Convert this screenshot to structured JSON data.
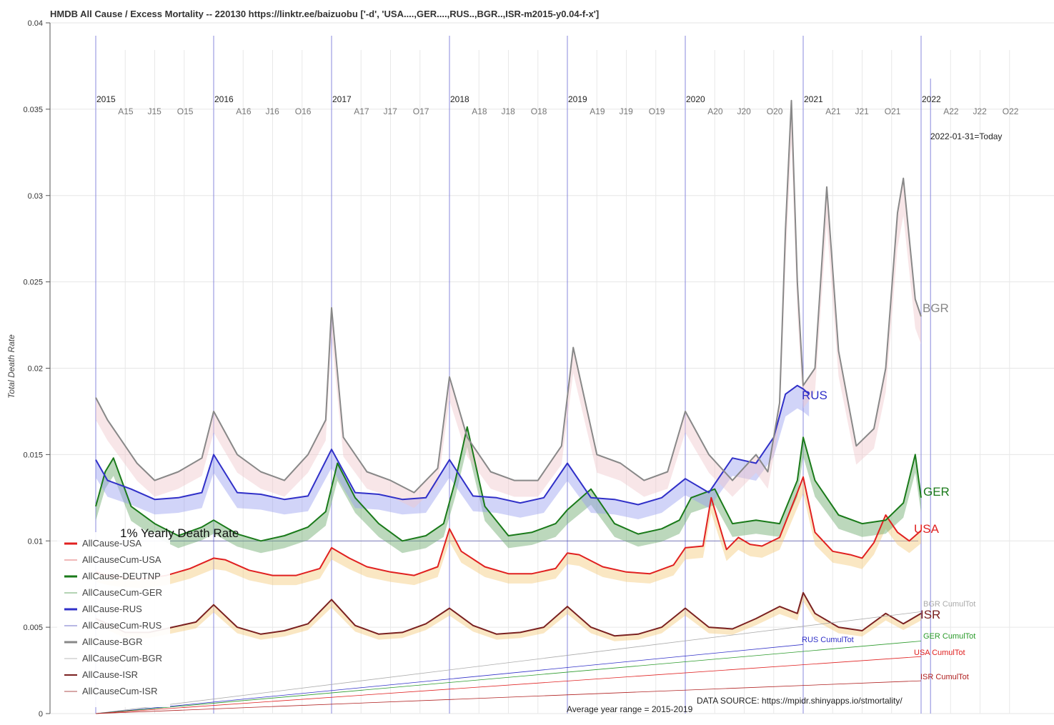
{
  "title": "HMDB All Cause / Excess Mortality -- 220130  https://linktr.ee/baizuobu  ['-d', 'USA....,GER....,RUS..,BGR..,ISR-m2015-y0.04-f-x']",
  "today_label": "2022-01-31=Today",
  "data_source": "DATA SOURCE: https://mpidr.shinyapps.io/stmortality/",
  "avg_range": "Average year range = 2015-2019",
  "ref_line_label": "1% Yearly Death Rate",
  "colors": {
    "USA": "#e02020",
    "GER": "#1a7a1a",
    "RUS": "#3030c8",
    "BGR": "#888888",
    "ISR": "#7a2020",
    "excess_fill": "#f4c97a",
    "deficit_fill": "#9aa0f0",
    "green_fill": "#6aa86a",
    "bgr_fill": "#f0c8cc"
  },
  "chart_data": {
    "type": "line",
    "title": "HMDB All Cause / Excess Mortality -- 220130  https://linktr.ee/baizuobu  ['-d', 'USA....,GER....,RUS..,BGR..,ISR-m2015-y0.04-f-x']",
    "ylabel": "Total Death Rate",
    "xlabel": "",
    "ylim": [
      0,
      0.04
    ],
    "xlim": [
      2015.0,
      2022.99
    ],
    "y_ticks": [
      "0",
      "0.005",
      "0.01",
      "0.015",
      "0.02",
      "0.025",
      "0.03",
      "0.035",
      "0.04"
    ],
    "x_year_labels": [
      "2015",
      "2016",
      "2017",
      "2018",
      "2019",
      "2020",
      "2021",
      "2022"
    ],
    "x_month_labels": [
      "A15",
      "J15",
      "O15",
      "A16",
      "J16",
      "O16",
      "A17",
      "J17",
      "O17",
      "A18",
      "J18",
      "O18",
      "A19",
      "J19",
      "O19",
      "A20",
      "J20",
      "O20",
      "A21",
      "J21",
      "O21",
      "A22",
      "J22",
      "O22"
    ],
    "reference_line": {
      "y": 0.01,
      "label": "1% Yearly Death Rate"
    },
    "today": "2022-01-31",
    "grid": true,
    "legend_position": "bottom-left",
    "legend": [
      "AllCause-USA",
      "AllCauseCum-USA",
      "AllCause-DEUTNP",
      "AllCauseCum-GER",
      "AllCause-RUS",
      "AllCauseCum-RUS",
      "AllCause-BGR",
      "AllCauseCum-BGR",
      "AllCause-ISR",
      "AllCauseCum-ISR"
    ],
    "series": [
      {
        "name": "AllCause-USA",
        "end_label": "USA",
        "color": "#e02020",
        "x": [
          2015.0,
          2015.1,
          2015.2,
          2015.4,
          2015.6,
          2015.8,
          2016.0,
          2016.1,
          2016.3,
          2016.5,
          2016.7,
          2016.9,
          2017.0,
          2017.15,
          2017.3,
          2017.5,
          2017.7,
          2017.9,
          2018.0,
          2018.1,
          2018.3,
          2018.5,
          2018.7,
          2018.9,
          2019.0,
          2019.1,
          2019.3,
          2019.5,
          2019.7,
          2019.9,
          2020.0,
          2020.15,
          2020.22,
          2020.35,
          2020.45,
          2020.55,
          2020.65,
          2020.8,
          2020.95,
          2021.0,
          2021.1,
          2021.25,
          2021.4,
          2021.5,
          2021.6,
          2021.7,
          2021.8,
          2021.9,
          2022.0
        ],
        "values": [
          0.0082,
          0.008,
          0.0079,
          0.0078,
          0.008,
          0.0084,
          0.009,
          0.0089,
          0.0083,
          0.008,
          0.008,
          0.0084,
          0.0096,
          0.009,
          0.0085,
          0.0082,
          0.008,
          0.0085,
          0.0107,
          0.0094,
          0.0085,
          0.0081,
          0.0081,
          0.0084,
          0.0093,
          0.0092,
          0.0085,
          0.0082,
          0.0081,
          0.0086,
          0.0096,
          0.0097,
          0.0125,
          0.0095,
          0.0102,
          0.0098,
          0.0097,
          0.0102,
          0.0128,
          0.0137,
          0.0105,
          0.0094,
          0.0092,
          0.009,
          0.0099,
          0.0115,
          0.0105,
          0.01,
          0.0106
        ]
      },
      {
        "name": "AllCause-DEUTNP",
        "end_label": "GER",
        "color": "#1a7a1a",
        "x": [
          2015.0,
          2015.08,
          2015.15,
          2015.3,
          2015.5,
          2015.7,
          2015.9,
          2016.0,
          2016.2,
          2016.4,
          2016.6,
          2016.8,
          2016.95,
          2017.05,
          2017.2,
          2017.4,
          2017.6,
          2017.8,
          2017.95,
          2018.05,
          2018.15,
          2018.3,
          2018.5,
          2018.7,
          2018.9,
          2019.0,
          2019.2,
          2019.4,
          2019.6,
          2019.8,
          2019.95,
          2020.05,
          2020.25,
          2020.4,
          2020.6,
          2020.8,
          2020.95,
          2021.0,
          2021.1,
          2021.3,
          2021.5,
          2021.7,
          2021.85,
          2021.95,
          2022.0
        ],
        "values": [
          0.012,
          0.014,
          0.0148,
          0.012,
          0.011,
          0.0103,
          0.0108,
          0.0112,
          0.0104,
          0.01,
          0.0103,
          0.0108,
          0.0117,
          0.0145,
          0.0125,
          0.011,
          0.01,
          0.0103,
          0.011,
          0.0135,
          0.0166,
          0.012,
          0.0103,
          0.0105,
          0.011,
          0.0118,
          0.013,
          0.011,
          0.0104,
          0.0107,
          0.0112,
          0.0125,
          0.013,
          0.011,
          0.0112,
          0.011,
          0.0135,
          0.016,
          0.0135,
          0.0115,
          0.011,
          0.0112,
          0.0122,
          0.015,
          0.0125
        ]
      },
      {
        "name": "AllCause-RUS",
        "end_label": "RUS",
        "color": "#3030c8",
        "x": [
          2015.0,
          2015.1,
          2015.3,
          2015.5,
          2015.7,
          2015.9,
          2016.0,
          2016.2,
          2016.4,
          2016.6,
          2016.8,
          2017.0,
          2017.2,
          2017.4,
          2017.6,
          2017.8,
          2018.0,
          2018.2,
          2018.4,
          2018.6,
          2018.8,
          2019.0,
          2019.2,
          2019.4,
          2019.6,
          2019.8,
          2020.0,
          2020.2,
          2020.4,
          2020.6,
          2020.75,
          2020.85,
          2020.95,
          2021.0,
          2021.05
        ],
        "values": [
          0.0147,
          0.0135,
          0.013,
          0.0124,
          0.0125,
          0.0128,
          0.015,
          0.0128,
          0.0127,
          0.0124,
          0.0126,
          0.0153,
          0.0128,
          0.0127,
          0.0124,
          0.0125,
          0.0147,
          0.0126,
          0.0125,
          0.0122,
          0.0125,
          0.0145,
          0.0125,
          0.0124,
          0.0121,
          0.0125,
          0.0136,
          0.0128,
          0.0148,
          0.0145,
          0.016,
          0.0185,
          0.019,
          0.0188,
          0.0185
        ]
      },
      {
        "name": "AllCause-BGR",
        "end_label": "BGR",
        "color": "#888888",
        "x": [
          2015.0,
          2015.1,
          2015.2,
          2015.35,
          2015.5,
          2015.7,
          2015.9,
          2016.0,
          2016.2,
          2016.4,
          2016.6,
          2016.8,
          2016.95,
          2017.0,
          2017.1,
          2017.3,
          2017.5,
          2017.7,
          2017.9,
          2018.0,
          2018.15,
          2018.35,
          2018.55,
          2018.75,
          2018.95,
          2019.05,
          2019.25,
          2019.45,
          2019.65,
          2019.85,
          2020.0,
          2020.2,
          2020.4,
          2020.6,
          2020.7,
          2020.8,
          2020.85,
          2020.9,
          2020.95,
          2021.0,
          2021.1,
          2021.2,
          2021.3,
          2021.45,
          2021.6,
          2021.7,
          2021.8,
          2021.85,
          2021.95,
          2022.0
        ],
        "values": [
          0.0183,
          0.017,
          0.016,
          0.0145,
          0.0135,
          0.014,
          0.0148,
          0.0175,
          0.015,
          0.014,
          0.0135,
          0.015,
          0.017,
          0.0235,
          0.016,
          0.014,
          0.0135,
          0.0128,
          0.0142,
          0.0195,
          0.016,
          0.014,
          0.0135,
          0.0135,
          0.0155,
          0.0212,
          0.015,
          0.0145,
          0.0135,
          0.014,
          0.0175,
          0.015,
          0.0135,
          0.015,
          0.014,
          0.018,
          0.028,
          0.0355,
          0.025,
          0.019,
          0.02,
          0.0305,
          0.021,
          0.0155,
          0.0165,
          0.02,
          0.029,
          0.031,
          0.024,
          0.023
        ]
      },
      {
        "name": "AllCause-ISR",
        "end_label": "ISR",
        "color": "#7a2020",
        "x": [
          2015.0,
          2015.1,
          2015.25,
          2015.45,
          2015.65,
          2015.85,
          2016.0,
          2016.2,
          2016.4,
          2016.6,
          2016.8,
          2017.0,
          2017.2,
          2017.4,
          2017.6,
          2017.8,
          2018.0,
          2018.2,
          2018.4,
          2018.6,
          2018.8,
          2019.0,
          2019.2,
          2019.4,
          2019.6,
          2019.8,
          2020.0,
          2020.2,
          2020.4,
          2020.6,
          2020.8,
          2020.95,
          2021.0,
          2021.1,
          2021.3,
          2021.5,
          2021.7,
          2021.85,
          2022.0
        ],
        "values": [
          0.0055,
          0.0052,
          0.0047,
          0.0047,
          0.005,
          0.0053,
          0.0063,
          0.005,
          0.0046,
          0.0048,
          0.0052,
          0.0066,
          0.0051,
          0.0046,
          0.0047,
          0.0052,
          0.0061,
          0.0051,
          0.0046,
          0.0047,
          0.005,
          0.0062,
          0.005,
          0.0045,
          0.0046,
          0.005,
          0.0061,
          0.005,
          0.0049,
          0.0055,
          0.0062,
          0.0058,
          0.007,
          0.0058,
          0.005,
          0.0048,
          0.0058,
          0.0052,
          0.0058
        ]
      },
      {
        "name": "AllCauseCum-BGR",
        "end_label": "BGR CumulTot",
        "color": "#aaaaaa",
        "x": [
          2015.0,
          2022.0
        ],
        "values": [
          0.0,
          0.0059
        ]
      },
      {
        "name": "AllCauseCum-RUS",
        "end_label": "RUS CumulTot",
        "color": "#3030c8",
        "x": [
          2015.0,
          2021.0
        ],
        "values": [
          0.0,
          0.004
        ]
      },
      {
        "name": "AllCauseCum-GER",
        "end_label": "GER CumulTot",
        "color": "#2a9a2a",
        "x": [
          2015.0,
          2022.0
        ],
        "values": [
          0.0,
          0.0042
        ]
      },
      {
        "name": "AllCauseCum-USA",
        "end_label": "USA CumulTot",
        "color": "#e02020",
        "x": [
          2015.0,
          2022.0
        ],
        "values": [
          0.0,
          0.0033
        ]
      },
      {
        "name": "AllCauseCum-ISR",
        "end_label": "ISR CumulTot",
        "color": "#b02020",
        "x": [
          2015.0,
          2022.0
        ],
        "values": [
          0.0,
          0.0019
        ]
      }
    ]
  }
}
